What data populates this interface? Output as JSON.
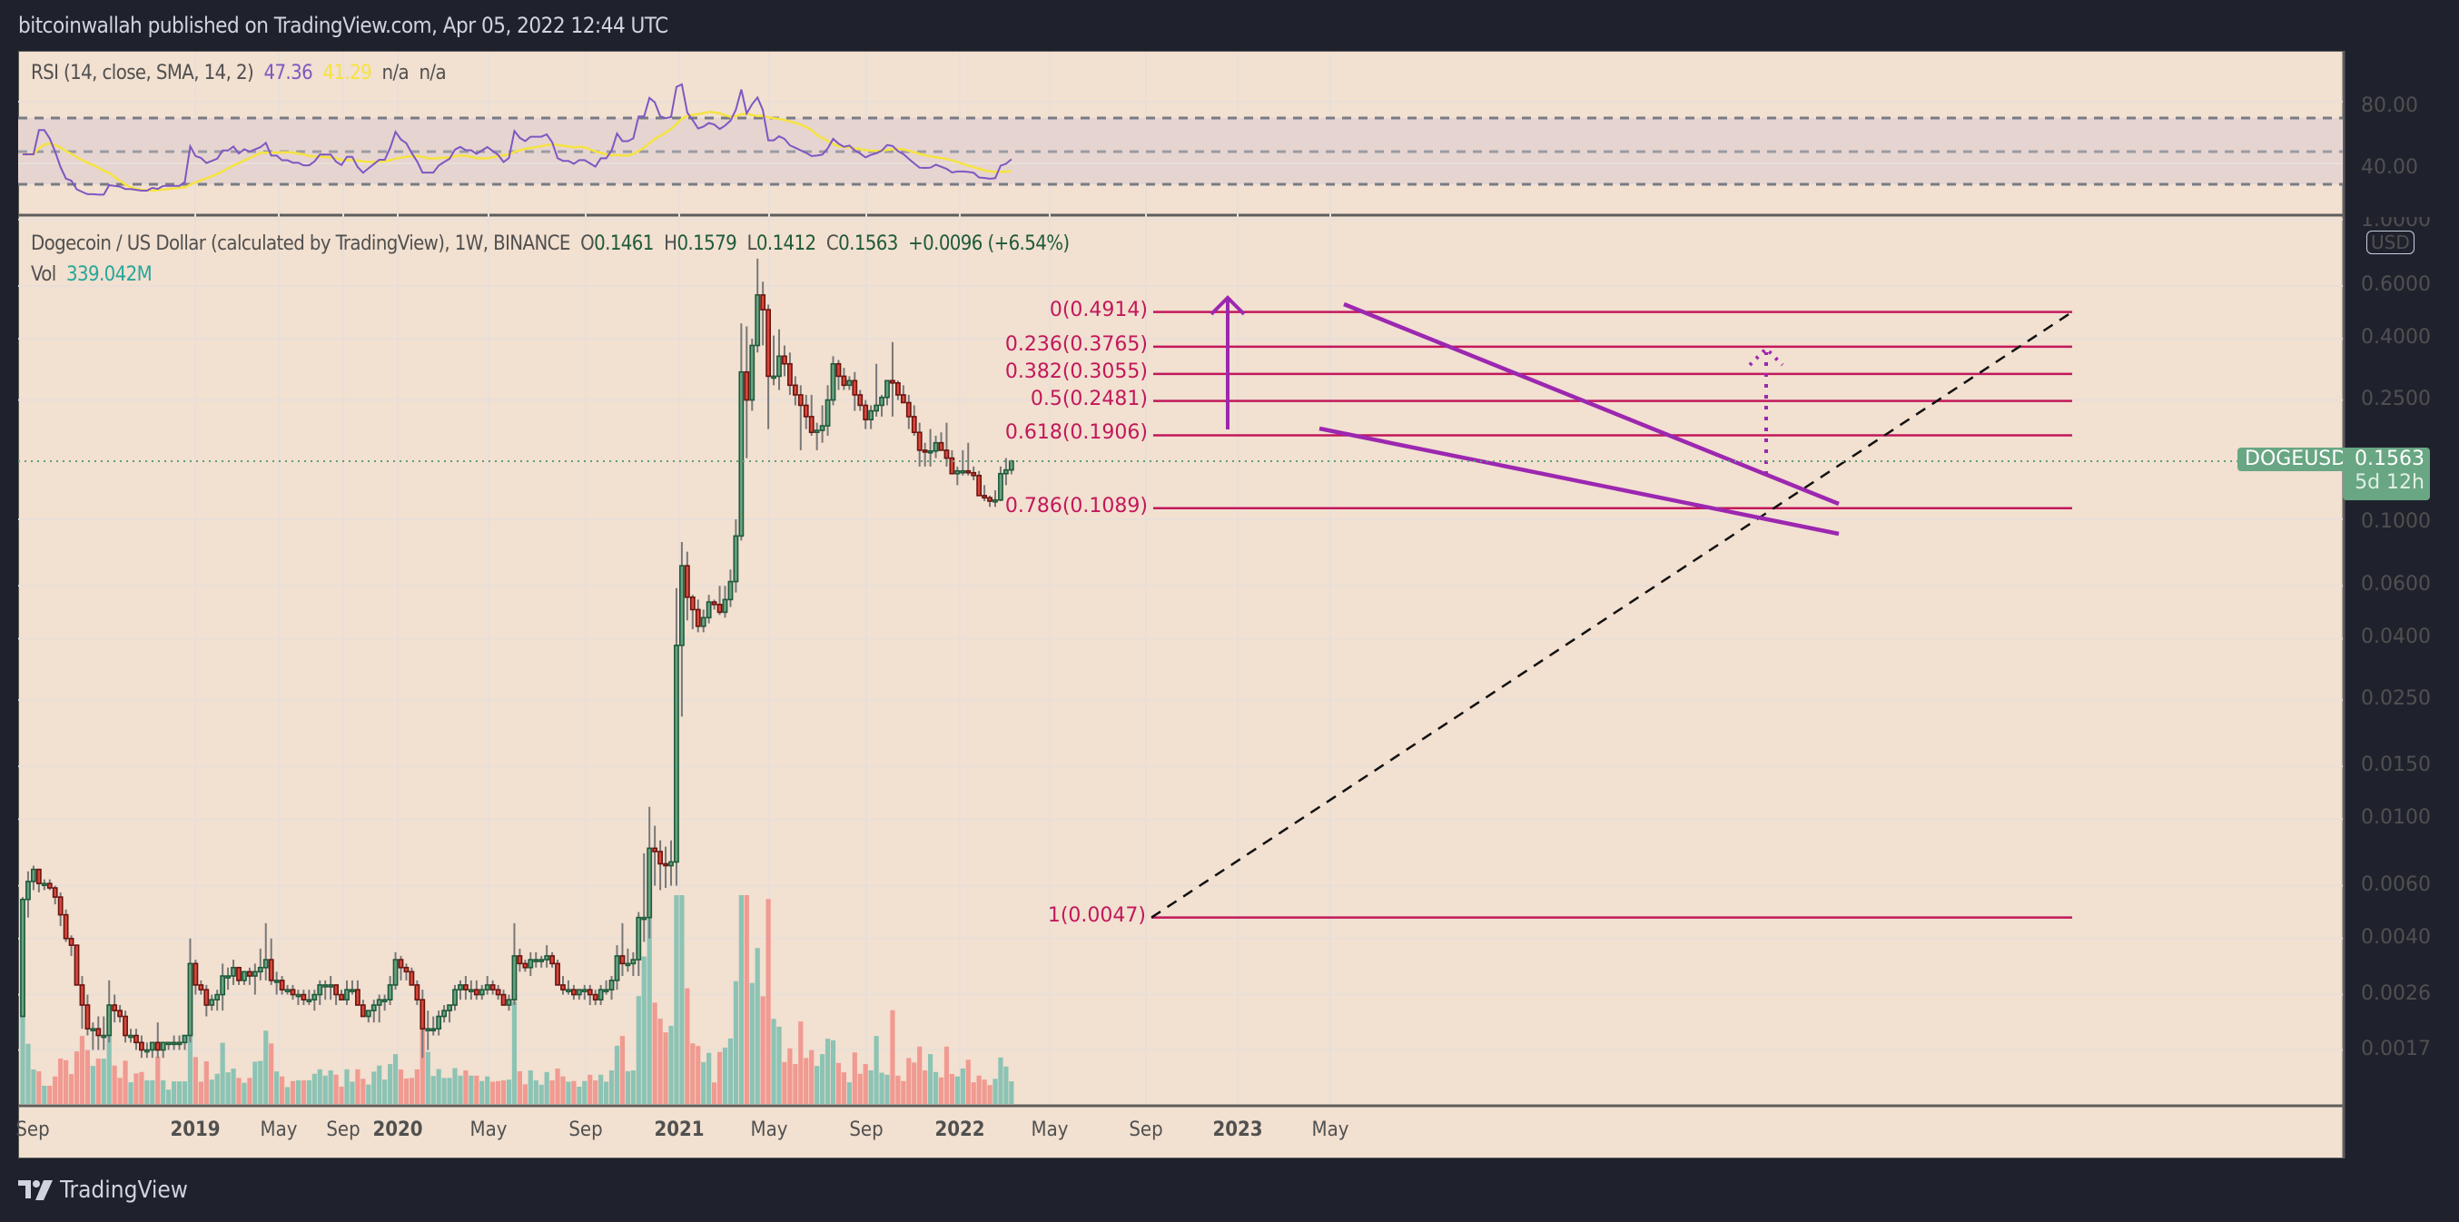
{
  "header": {
    "publish_text": "bitcoinwallah published on TradingView.com, Apr 05, 2022 12:44 UTC"
  },
  "rsi": {
    "label": "RSI (14, close, SMA, 14, 2)",
    "value": "47.36",
    "sma_value": "41.29",
    "extra1": "n/a",
    "extra2": "n/a",
    "axis": [
      "80.00",
      "40.00"
    ],
    "colors": {
      "rsi": "#7e57c2",
      "sma": "#f5e342"
    }
  },
  "main": {
    "title": "Dogecoin / US Dollar (calculated by TradingView), 1W, BINANCE",
    "ohlc": {
      "o_label": "O",
      "o": "0.1461",
      "h_label": "H",
      "h": "0.1579",
      "l_label": "L",
      "l": "0.1412",
      "c_label": "C",
      "c": "0.1563",
      "change": "+0.0096 (+6.54%)"
    },
    "vol_label": "Vol",
    "vol_value": "339.042M",
    "currency": "USD",
    "price_axis": [
      "1.0000",
      "0.6000",
      "0.4000",
      "0.2500",
      "0.1000",
      "0.0600",
      "0.0400",
      "0.0250",
      "0.0150",
      "0.0100",
      "0.0060",
      "0.0040",
      "0.0026",
      "0.0017"
    ],
    "symbol_tag": "DOGEUSD",
    "last_price": "0.1563",
    "countdown": "5d 12h",
    "time_axis": [
      "Sep",
      "2019",
      "May",
      "Sep",
      "2020",
      "May",
      "Sep",
      "2021",
      "May",
      "Sep",
      "2022",
      "May",
      "Sep",
      "2023",
      "May"
    ],
    "fib_levels": [
      {
        "label": "0(0.4914)",
        "price": 0.4914
      },
      {
        "label": "0.236(0.3765)",
        "price": 0.3765
      },
      {
        "label": "0.382(0.3055)",
        "price": 0.3055
      },
      {
        "label": "0.5(0.2481)",
        "price": 0.2481
      },
      {
        "label": "0.618(0.1906)",
        "price": 0.1906
      },
      {
        "label": "0.786(0.1089)",
        "price": 0.1089
      },
      {
        "label": "1(0.0047)",
        "price": 0.0047
      }
    ]
  },
  "footer": {
    "brand": "TradingView"
  },
  "chart_data": {
    "type": "candlestick",
    "title": "Dogecoin / US Dollar (calculated by TradingView), 1W, BINANCE",
    "scale": "log",
    "ylabel": "USD",
    "ylim": [
      0.0013,
      1.0
    ],
    "x_range": [
      "2018-08",
      "2023-06"
    ],
    "x_ticks": [
      "Sep",
      "2019",
      "May",
      "Sep",
      "2020",
      "May",
      "Sep",
      "2021",
      "May",
      "Sep",
      "2022",
      "May",
      "Sep",
      "2023",
      "May"
    ],
    "y_ticks": [
      1.0,
      0.6,
      0.4,
      0.25,
      0.1,
      0.06,
      0.04,
      0.025,
      0.015,
      0.01,
      0.006,
      0.004,
      0.0026,
      0.0017
    ],
    "last": {
      "open": 0.1461,
      "high": 0.1579,
      "low": 0.1412,
      "close": 0.1563,
      "change": 0.0096,
      "change_pct": 6.54,
      "volume": "339.042M"
    },
    "fibonacci_retracement": [
      {
        "level": 0,
        "price": 0.4914
      },
      {
        "level": 0.236,
        "price": 0.3765
      },
      {
        "level": 0.382,
        "price": 0.3055
      },
      {
        "level": 0.5,
        "price": 0.2481
      },
      {
        "level": 0.618,
        "price": 0.1906
      },
      {
        "level": 0.786,
        "price": 0.1089
      },
      {
        "level": 1,
        "price": 0.0047
      }
    ],
    "annotations": [
      "Falling wedge (purple trendlines) from May 2021 to Apr 2022",
      "Dashed black trendline from 1(0.0047) rising",
      "Solid purple arrow up (pole)",
      "Dotted purple projected arrow up to ~0.37"
    ],
    "rsi": {
      "period": 14,
      "value": 47.36,
      "sma": 41.29,
      "bands": [
        70,
        50,
        30
      ],
      "axis_ticks": [
        80,
        40
      ]
    },
    "candles": [
      [
        0.0022,
        0.0055,
        0.0022,
        0.0054
      ],
      [
        0.0054,
        0.0067,
        0.0047,
        0.0062
      ],
      [
        0.0062,
        0.007,
        0.0058,
        0.0068
      ],
      [
        0.0068,
        0.0068,
        0.0057,
        0.0061
      ],
      [
        0.0061,
        0.0063,
        0.0058,
        0.0061
      ],
      [
        0.0061,
        0.0063,
        0.0058,
        0.0059
      ],
      [
        0.0059,
        0.006,
        0.0052,
        0.0055
      ],
      [
        0.0055,
        0.0057,
        0.0044,
        0.0048
      ],
      [
        0.0048,
        0.005,
        0.0039,
        0.004
      ],
      [
        0.004,
        0.0041,
        0.0035,
        0.0038
      ],
      [
        0.0038,
        0.0038,
        0.0028,
        0.0028
      ],
      [
        0.0028,
        0.003,
        0.002,
        0.0024
      ],
      [
        0.0024,
        0.0026,
        0.0019,
        0.002
      ],
      [
        0.002,
        0.0021,
        0.0017,
        0.002
      ],
      [
        0.002,
        0.0022,
        0.0017,
        0.0019
      ],
      [
        0.0019,
        0.0022,
        0.0017,
        0.0019
      ],
      [
        0.0019,
        0.0029,
        0.0018,
        0.0024
      ],
      [
        0.0024,
        0.0026,
        0.0021,
        0.0023
      ],
      [
        0.0023,
        0.0024,
        0.0021,
        0.0022
      ],
      [
        0.0022,
        0.0023,
        0.0018,
        0.0019
      ],
      [
        0.0019,
        0.002,
        0.0018,
        0.0019
      ],
      [
        0.0019,
        0.002,
        0.0017,
        0.0018
      ],
      [
        0.0018,
        0.0019,
        0.0016,
        0.0017
      ],
      [
        0.0017,
        0.0018,
        0.0016,
        0.0017
      ],
      [
        0.0017,
        0.0018,
        0.0016,
        0.0018
      ],
      [
        0.0018,
        0.0021,
        0.0016,
        0.0017
      ],
      [
        0.0017,
        0.0018,
        0.0016,
        0.0018
      ],
      [
        0.0018,
        0.0018,
        0.0017,
        0.0018
      ],
      [
        0.0018,
        0.0019,
        0.0017,
        0.0018
      ],
      [
        0.0018,
        0.0019,
        0.0017,
        0.0018
      ],
      [
        0.0018,
        0.0019,
        0.0017,
        0.0019
      ],
      [
        0.0019,
        0.004,
        0.0018,
        0.0033
      ],
      [
        0.0033,
        0.0034,
        0.0026,
        0.0028
      ],
      [
        0.0028,
        0.0029,
        0.0026,
        0.0027
      ],
      [
        0.0027,
        0.0028,
        0.0022,
        0.0024
      ],
      [
        0.0024,
        0.0026,
        0.0023,
        0.0025
      ],
      [
        0.0025,
        0.0027,
        0.0023,
        0.0026
      ],
      [
        0.0026,
        0.0033,
        0.0023,
        0.003
      ],
      [
        0.003,
        0.0032,
        0.0027,
        0.003
      ],
      [
        0.003,
        0.0034,
        0.0028,
        0.0032
      ],
      [
        0.0032,
        0.0032,
        0.0028,
        0.0029
      ],
      [
        0.0029,
        0.0031,
        0.0028,
        0.0031
      ],
      [
        0.0031,
        0.0032,
        0.0028,
        0.003
      ],
      [
        0.003,
        0.0033,
        0.0026,
        0.0031
      ],
      [
        0.0031,
        0.0037,
        0.0029,
        0.0032
      ],
      [
        0.0032,
        0.0045,
        0.0029,
        0.0034
      ],
      [
        0.0034,
        0.004,
        0.0028,
        0.0029
      ],
      [
        0.0029,
        0.0031,
        0.0026,
        0.0029
      ],
      [
        0.0029,
        0.003,
        0.0026,
        0.0027
      ],
      [
        0.0027,
        0.0028,
        0.0026,
        0.0027
      ],
      [
        0.0027,
        0.0028,
        0.0025,
        0.0026
      ],
      [
        0.0026,
        0.0027,
        0.0024,
        0.0026
      ],
      [
        0.0026,
        0.0027,
        0.0024,
        0.0025
      ],
      [
        0.0025,
        0.0027,
        0.0024,
        0.0025
      ],
      [
        0.0025,
        0.0027,
        0.0023,
        0.0026
      ],
      [
        0.0026,
        0.0029,
        0.0024,
        0.0028
      ],
      [
        0.0028,
        0.0029,
        0.0025,
        0.0028
      ],
      [
        0.0028,
        0.003,
        0.0025,
        0.0028
      ],
      [
        0.0028,
        0.0028,
        0.0024,
        0.0026
      ],
      [
        0.0026,
        0.0027,
        0.0025,
        0.0025
      ],
      [
        0.0025,
        0.0029,
        0.0024,
        0.0027
      ],
      [
        0.0027,
        0.0029,
        0.0026,
        0.0027
      ],
      [
        0.0027,
        0.0029,
        0.0024,
        0.0024
      ],
      [
        0.0024,
        0.0025,
        0.0022,
        0.0022
      ],
      [
        0.0022,
        0.0023,
        0.0021,
        0.0023
      ],
      [
        0.0023,
        0.0025,
        0.0021,
        0.0024
      ],
      [
        0.0024,
        0.0026,
        0.0021,
        0.0025
      ],
      [
        0.0025,
        0.0026,
        0.0023,
        0.0025
      ],
      [
        0.0025,
        0.003,
        0.0024,
        0.0028
      ],
      [
        0.0028,
        0.0036,
        0.0027,
        0.0034
      ],
      [
        0.0034,
        0.0035,
        0.0029,
        0.0032
      ],
      [
        0.0032,
        0.0033,
        0.0029,
        0.0031
      ],
      [
        0.0031,
        0.0032,
        0.0028,
        0.0028
      ],
      [
        0.0028,
        0.0029,
        0.0024,
        0.0025
      ],
      [
        0.0025,
        0.0027,
        0.0016,
        0.002
      ],
      [
        0.002,
        0.0023,
        0.0017,
        0.002
      ],
      [
        0.002,
        0.0022,
        0.0019,
        0.002
      ],
      [
        0.002,
        0.0023,
        0.0019,
        0.0022
      ],
      [
        0.0022,
        0.0024,
        0.0021,
        0.0023
      ],
      [
        0.0023,
        0.0024,
        0.0021,
        0.0024
      ],
      [
        0.0024,
        0.0028,
        0.0023,
        0.0027
      ],
      [
        0.0027,
        0.0029,
        0.0025,
        0.0028
      ],
      [
        0.0028,
        0.003,
        0.0025,
        0.0027
      ],
      [
        0.0027,
        0.0029,
        0.0025,
        0.0027
      ],
      [
        0.0027,
        0.0029,
        0.0025,
        0.0026
      ],
      [
        0.0026,
        0.0028,
        0.0025,
        0.0027
      ],
      [
        0.0027,
        0.003,
        0.0026,
        0.0028
      ],
      [
        0.0028,
        0.0029,
        0.0026,
        0.0027
      ],
      [
        0.0027,
        0.0028,
        0.0025,
        0.0026
      ],
      [
        0.0026,
        0.0027,
        0.0024,
        0.0024
      ],
      [
        0.0024,
        0.0026,
        0.0023,
        0.0025
      ],
      [
        0.0025,
        0.0045,
        0.0024,
        0.0035
      ],
      [
        0.0035,
        0.0037,
        0.0031,
        0.0033
      ],
      [
        0.0033,
        0.0034,
        0.0031,
        0.0032
      ],
      [
        0.0032,
        0.0036,
        0.003,
        0.0034
      ],
      [
        0.0034,
        0.0036,
        0.0032,
        0.0034
      ],
      [
        0.0034,
        0.0035,
        0.0032,
        0.0034
      ],
      [
        0.0034,
        0.0038,
        0.0032,
        0.0035
      ],
      [
        0.0035,
        0.0036,
        0.0032,
        0.0033
      ],
      [
        0.0033,
        0.0034,
        0.0028,
        0.0028
      ],
      [
        0.0028,
        0.003,
        0.0026,
        0.0027
      ],
      [
        0.0027,
        0.0029,
        0.0026,
        0.0027
      ],
      [
        0.0027,
        0.0028,
        0.0025,
        0.0026
      ],
      [
        0.0026,
        0.0027,
        0.0025,
        0.0027
      ],
      [
        0.0027,
        0.0028,
        0.0025,
        0.0027
      ],
      [
        0.0027,
        0.0028,
        0.0024,
        0.0026
      ],
      [
        0.0026,
        0.0027,
        0.0024,
        0.0025
      ],
      [
        0.0025,
        0.0028,
        0.0024,
        0.0027
      ],
      [
        0.0027,
        0.0029,
        0.0026,
        0.0027
      ],
      [
        0.0027,
        0.003,
        0.0025,
        0.0029
      ],
      [
        0.0029,
        0.0038,
        0.0027,
        0.0035
      ],
      [
        0.0035,
        0.0045,
        0.003,
        0.0033
      ],
      [
        0.0033,
        0.0037,
        0.0031,
        0.0033
      ],
      [
        0.0033,
        0.0036,
        0.003,
        0.0034
      ],
      [
        0.0034,
        0.0049,
        0.003,
        0.0047
      ],
      [
        0.0047,
        0.0077,
        0.0039,
        0.0047
      ],
      [
        0.0047,
        0.011,
        0.004,
        0.008
      ],
      [
        0.008,
        0.0095,
        0.006,
        0.0078
      ],
      [
        0.0078,
        0.0085,
        0.0058,
        0.0071
      ],
      [
        0.0071,
        0.0081,
        0.0059,
        0.007
      ],
      [
        0.007,
        0.0085,
        0.006,
        0.0072
      ],
      [
        0.0072,
        0.059,
        0.006,
        0.038
      ],
      [
        0.038,
        0.084,
        0.022,
        0.07
      ],
      [
        0.07,
        0.078,
        0.046,
        0.055
      ],
      [
        0.055,
        0.056,
        0.043,
        0.05
      ],
      [
        0.05,
        0.054,
        0.042,
        0.044
      ],
      [
        0.044,
        0.05,
        0.042,
        0.047
      ],
      [
        0.047,
        0.056,
        0.045,
        0.053
      ],
      [
        0.053,
        0.054,
        0.05,
        0.052
      ],
      [
        0.052,
        0.06,
        0.048,
        0.049
      ],
      [
        0.049,
        0.06,
        0.047,
        0.054
      ],
      [
        0.054,
        0.068,
        0.051,
        0.062
      ],
      [
        0.062,
        0.1,
        0.057,
        0.088
      ],
      [
        0.088,
        0.45,
        0.085,
        0.31
      ],
      [
        0.31,
        0.44,
        0.16,
        0.25
      ],
      [
        0.25,
        0.4,
        0.23,
        0.38
      ],
      [
        0.38,
        0.74,
        0.36,
        0.56
      ],
      [
        0.56,
        0.62,
        0.38,
        0.5
      ],
      [
        0.5,
        0.52,
        0.2,
        0.3
      ],
      [
        0.3,
        0.41,
        0.28,
        0.3
      ],
      [
        0.3,
        0.43,
        0.27,
        0.35
      ],
      [
        0.35,
        0.38,
        0.3,
        0.33
      ],
      [
        0.33,
        0.36,
        0.26,
        0.28
      ],
      [
        0.28,
        0.3,
        0.24,
        0.26
      ],
      [
        0.26,
        0.28,
        0.17,
        0.24
      ],
      [
        0.24,
        0.26,
        0.2,
        0.22
      ],
      [
        0.22,
        0.26,
        0.19,
        0.195
      ],
      [
        0.195,
        0.21,
        0.17,
        0.198
      ],
      [
        0.198,
        0.24,
        0.18,
        0.205
      ],
      [
        0.205,
        0.28,
        0.19,
        0.25
      ],
      [
        0.25,
        0.35,
        0.24,
        0.33
      ],
      [
        0.33,
        0.34,
        0.27,
        0.3
      ],
      [
        0.3,
        0.32,
        0.27,
        0.28
      ],
      [
        0.28,
        0.3,
        0.27,
        0.29
      ],
      [
        0.29,
        0.31,
        0.23,
        0.26
      ],
      [
        0.26,
        0.27,
        0.23,
        0.24
      ],
      [
        0.24,
        0.25,
        0.2,
        0.215
      ],
      [
        0.215,
        0.24,
        0.2,
        0.23
      ],
      [
        0.23,
        0.33,
        0.22,
        0.24
      ],
      [
        0.24,
        0.26,
        0.22,
        0.255
      ],
      [
        0.255,
        0.28,
        0.24,
        0.29
      ],
      [
        0.29,
        0.39,
        0.22,
        0.285
      ],
      [
        0.285,
        0.29,
        0.25,
        0.26
      ],
      [
        0.26,
        0.28,
        0.25,
        0.245
      ],
      [
        0.245,
        0.26,
        0.2,
        0.22
      ],
      [
        0.22,
        0.24,
        0.19,
        0.195
      ],
      [
        0.195,
        0.21,
        0.15,
        0.17
      ],
      [
        0.17,
        0.18,
        0.15,
        0.168
      ],
      [
        0.168,
        0.2,
        0.15,
        0.169
      ],
      [
        0.169,
        0.19,
        0.16,
        0.18
      ],
      [
        0.18,
        0.195,
        0.17,
        0.17
      ],
      [
        0.17,
        0.21,
        0.15,
        0.16
      ],
      [
        0.16,
        0.17,
        0.145,
        0.142
      ],
      [
        0.142,
        0.15,
        0.13,
        0.145
      ],
      [
        0.145,
        0.17,
        0.14,
        0.145
      ],
      [
        0.145,
        0.18,
        0.14,
        0.143
      ],
      [
        0.143,
        0.15,
        0.135,
        0.14
      ],
      [
        0.14,
        0.145,
        0.125,
        0.12
      ],
      [
        0.12,
        0.13,
        0.115,
        0.118
      ],
      [
        0.118,
        0.12,
        0.11,
        0.115
      ],
      [
        0.115,
        0.125,
        0.11,
        0.116
      ],
      [
        0.116,
        0.15,
        0.115,
        0.142
      ],
      [
        0.142,
        0.16,
        0.13,
        0.1461
      ],
      [
        0.1461,
        0.1579,
        0.1412,
        0.1563
      ]
    ]
  }
}
